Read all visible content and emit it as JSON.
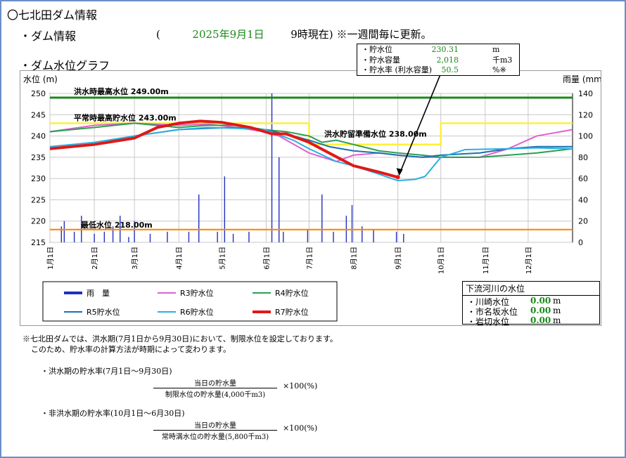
{
  "page": {
    "title": "〇七北田ダム情報",
    "section1": "・ダム情報",
    "date_open": "(",
    "date": "2025年9月1日",
    "time": "9時現在)",
    "update_note": "※一週間毎に更新。",
    "section2": "・ダム水位グラフ"
  },
  "info": {
    "rows": [
      {
        "label": "・貯水位",
        "value": "230.31",
        "unit": "m"
      },
      {
        "label": "・貯水容量",
        "value": "2,018",
        "unit": "千m3"
      },
      {
        "label": "・貯水率 (利水容量)",
        "value": "50.5",
        "unit": "%※"
      }
    ]
  },
  "downstream": {
    "header": "下流河川の水位",
    "rows": [
      {
        "label": "・川崎水位",
        "value": "0.00",
        "unit": "m"
      },
      {
        "label": "・市名坂水位",
        "value": "0.00",
        "unit": "m"
      },
      {
        "label": "・岩切水位",
        "value": "0.00",
        "unit": "m"
      }
    ]
  },
  "notes": {
    "n1": "※七北田ダムでは、洪水期(7月1日から9月30日)において、制限水位を設定しております。",
    "n2": "このため、貯水率の計算方法が時期によって変わります。",
    "f1_title": "・洪水期の貯水率(7月1日～9月30日)",
    "f1_num": "当日の貯水量",
    "f1_den": "制限水位の貯水量(4,000千m3)",
    "f1_mul": "×100(%)",
    "f2_title": "・非洪水期の貯水率(10月1日～6月30日)",
    "f2_num": "当日の貯水量",
    "f2_den": "常時満水位の貯水量(5,800千m3)",
    "f2_mul": "×100(%)"
  },
  "chart_data": {
    "type": "line",
    "ylabel": "水位 (m)",
    "y2label": "雨量 (mm)",
    "ylim": [
      215,
      250
    ],
    "y2lim": [
      0,
      140
    ],
    "yticks": [
      215,
      220,
      225,
      230,
      235,
      240,
      245,
      250
    ],
    "y2ticks": [
      0,
      20,
      40,
      60,
      80,
      100,
      120,
      140
    ],
    "xticks": [
      "1月1日",
      "2月1日",
      "3月1日",
      "4月1日",
      "5月1日",
      "6月1日",
      "7月1日",
      "8月1日",
      "9月1日",
      "10月1日",
      "11月1日",
      "12月1日"
    ],
    "grid": true,
    "reference_lines": [
      {
        "label": "洪水時最高水位 249.00m",
        "value": 249.0,
        "color": "#1a8a1a"
      },
      {
        "label": "平常時最高貯水位 243.00m",
        "value": 243.0,
        "color": "#ffee33"
      },
      {
        "label": "洪水貯留準備水位 238.00m",
        "value": 238.0,
        "color": "#ffee33"
      },
      {
        "label": "最低水位 218.00m",
        "value": 218.0,
        "color": "#ff8800"
      }
    ],
    "limit_line": {
      "x": [
        0,
        181,
        181,
        273,
        273,
        365
      ],
      "y": [
        243,
        243,
        238,
        238,
        243,
        243
      ]
    },
    "legend": [
      "雨　量",
      "R3貯水位",
      "R4貯水位",
      "R5貯水位",
      "R6貯水位",
      "R7貯水位"
    ],
    "series": [
      {
        "name": "R3貯水位",
        "color": "#e060d0",
        "x": [
          0,
          31,
          59,
          90,
          110,
          130,
          150,
          160,
          181,
          200,
          212,
          230,
          243,
          260,
          273,
          300,
          320,
          340,
          365
        ],
        "y": [
          241,
          242.5,
          243,
          242.5,
          242.8,
          242,
          241,
          240,
          236,
          234,
          235.5,
          236,
          235.5,
          235,
          235,
          235,
          237,
          240,
          241.5
        ]
      },
      {
        "name": "R4貯水位",
        "color": "#2ca050",
        "x": [
          0,
          31,
          59,
          90,
          110,
          130,
          150,
          165,
          181,
          190,
          200,
          212,
          230,
          243,
          260,
          273,
          300,
          320,
          340,
          365
        ],
        "y": [
          241,
          242,
          243,
          242,
          242.5,
          242.5,
          241.5,
          241,
          240,
          238.5,
          239,
          238,
          236.5,
          236,
          235.5,
          235,
          235,
          235.5,
          236,
          237
        ]
      },
      {
        "name": "R5貯水位",
        "color": "#1f6fb0",
        "x": [
          0,
          31,
          59,
          90,
          110,
          130,
          150,
          170,
          181,
          195,
          212,
          230,
          243,
          260,
          273,
          300,
          320,
          340,
          365
        ],
        "y": [
          237,
          238,
          240,
          241.5,
          241.8,
          242,
          241.5,
          240,
          239,
          237.5,
          236.5,
          236,
          235.5,
          235,
          235.5,
          236,
          237,
          237.5,
          237.5
        ]
      },
      {
        "name": "R6貯水位",
        "color": "#2ab0e0",
        "x": [
          0,
          31,
          59,
          90,
          110,
          130,
          150,
          170,
          181,
          200,
          212,
          230,
          243,
          255,
          262,
          273,
          290,
          320,
          340,
          365
        ],
        "y": [
          237.5,
          238.5,
          240,
          241.5,
          242,
          241.8,
          241.5,
          239,
          237,
          234,
          233,
          231,
          229.5,
          229.8,
          230.5,
          235,
          236.8,
          237,
          237.2,
          237
        ]
      },
      {
        "name": "R7貯水位",
        "color": "#e01818",
        "x": [
          0,
          31,
          59,
          75,
          90,
          105,
          120,
          140,
          150,
          155,
          165,
          181,
          195,
          212,
          230,
          243
        ],
        "y": [
          237,
          238,
          239.5,
          242,
          243,
          243.5,
          243.2,
          242,
          241,
          240.5,
          240.5,
          238.5,
          236,
          233,
          231.5,
          230.31
        ]
      }
    ],
    "rain": {
      "name": "雨　量",
      "color": "#2030c0",
      "x": [
        8,
        10,
        17,
        22,
        31,
        38,
        44,
        49,
        55,
        59,
        70,
        82,
        97,
        104,
        117,
        122,
        128,
        139,
        155,
        160,
        163,
        180,
        190,
        198,
        207,
        211,
        218,
        226,
        242,
        247
      ],
      "values": [
        15,
        20,
        10,
        25,
        8,
        10,
        15,
        25,
        5,
        20,
        8,
        10,
        10,
        45,
        10,
        62,
        8,
        10,
        140,
        80,
        10,
        12,
        45,
        10,
        25,
        35,
        15,
        12,
        10,
        8
      ]
    }
  }
}
